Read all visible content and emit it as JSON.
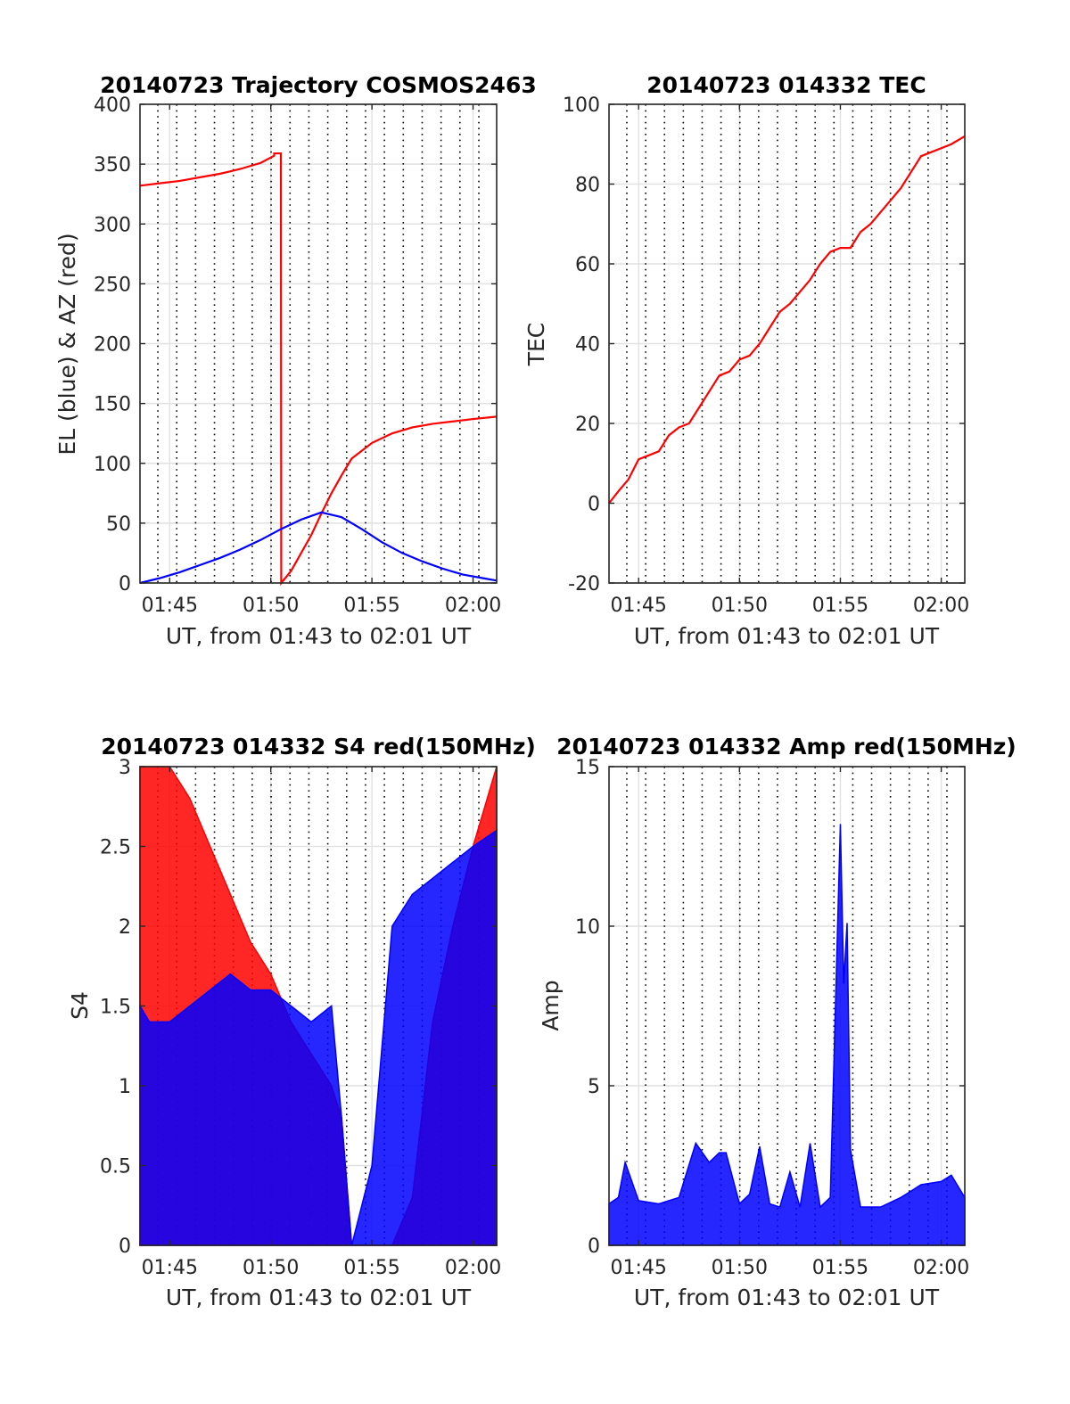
{
  "chart_data": [
    {
      "type": "line",
      "title": "20140723 Trajectory COSMOS2463",
      "xlabel": "UT, from 01:43 to 02:01 UT",
      "ylabel": "EL (blue) & AZ (red)",
      "xlim": [
        "01:43:32",
        "02:01:10"
      ],
      "ylim": [
        0,
        400
      ],
      "x_ticks": [
        "01:45",
        "01:50",
        "01:55",
        "02:00"
      ],
      "y_ticks": [
        "0",
        "50",
        "100",
        "150",
        "200",
        "250",
        "300",
        "350",
        "400"
      ],
      "grid": true,
      "series": [
        {
          "color": "#ff0000",
          "x": [
            "01:43:32",
            "01:44:30",
            "01:45:30",
            "01:46:30",
            "01:47:30",
            "01:48:30",
            "01:49:30",
            "01:50:10",
            "01:50:10",
            "01:50:30",
            "01:50:31",
            "01:51:00",
            "01:51:30",
            "01:52:00",
            "01:52:30",
            "01:53:00",
            "01:53:30",
            "01:54:00",
            "01:55:00",
            "01:56:00",
            "01:57:00",
            "01:58:00",
            "01:59:00",
            "02:00:00",
            "02:01:10"
          ],
          "values": [
            332,
            334,
            336,
            339,
            342,
            346,
            351,
            357,
            359,
            359,
            0,
            10,
            25,
            40,
            58,
            75,
            90,
            104,
            117,
            125,
            130,
            133,
            135,
            137,
            139
          ]
        },
        {
          "color": "#0000ff",
          "x": [
            "01:43:32",
            "01:44:30",
            "01:45:30",
            "01:46:30",
            "01:47:30",
            "01:48:30",
            "01:49:30",
            "01:50:30",
            "01:51:30",
            "01:52:30",
            "01:53:30",
            "01:54:30",
            "01:55:30",
            "01:56:30",
            "01:57:30",
            "01:58:30",
            "01:59:30",
            "02:00:30",
            "02:01:10"
          ],
          "values": [
            0,
            4,
            9,
            15,
            21,
            28,
            36,
            45,
            53,
            59,
            55,
            45,
            34,
            25,
            18,
            12,
            7,
            4,
            2
          ]
        }
      ]
    },
    {
      "type": "line",
      "title": "20140723 014332 TEC",
      "xlabel": "UT, from 01:43 to 02:01 UT",
      "ylabel": "TEC",
      "xlim": [
        "01:43:32",
        "02:01:10"
      ],
      "ylim": [
        -20,
        100
      ],
      "x_ticks": [
        "01:45",
        "01:50",
        "01:55",
        "02:00"
      ],
      "y_ticks": [
        "-20",
        "0",
        "20",
        "40",
        "60",
        "80",
        "100"
      ],
      "grid": true,
      "series": [
        {
          "color": "#ff0000",
          "x": [
            "01:43:32",
            "01:44:00",
            "01:44:30",
            "01:45:00",
            "01:45:30",
            "01:46:00",
            "01:46:30",
            "01:47:00",
            "01:47:30",
            "01:48:00",
            "01:48:30",
            "01:49:00",
            "01:49:30",
            "01:50:00",
            "01:50:30",
            "01:51:00",
            "01:51:30",
            "01:52:00",
            "01:52:30",
            "01:53:00",
            "01:53:30",
            "01:54:00",
            "01:54:30",
            "01:55:00",
            "01:55:30",
            "01:56:00",
            "01:56:30",
            "01:57:00",
            "01:57:30",
            "01:58:00",
            "01:58:30",
            "01:59:00",
            "01:59:30",
            "02:00:00",
            "02:00:30",
            "02:01:10"
          ],
          "values": [
            0,
            3,
            6,
            11,
            12,
            13,
            17,
            19,
            20,
            24,
            28,
            32,
            33,
            36,
            37,
            40,
            44,
            48,
            50,
            53,
            56,
            60,
            63,
            64,
            64,
            68,
            70,
            73,
            76,
            79,
            83,
            87,
            88,
            89,
            90,
            92
          ]
        }
      ]
    },
    {
      "type": "area",
      "title": "20140723 014332 S4 red(150MHz)",
      "xlabel": "UT, from 01:43 to 02:01 UT",
      "ylabel": "S4",
      "xlim": [
        "01:43:32",
        "02:01:10"
      ],
      "ylim": [
        0,
        3
      ],
      "x_ticks": [
        "01:45",
        "01:50",
        "01:55",
        "02:00"
      ],
      "y_ticks": [
        "0",
        "0.5",
        "1",
        "1.5",
        "2",
        "2.5",
        "3"
      ],
      "grid": true,
      "series": [
        {
          "color": "#ff0000",
          "x": [
            "01:43:32",
            "01:44:00",
            "01:45:00",
            "01:46:00",
            "01:47:00",
            "01:48:00",
            "01:49:00",
            "01:50:00",
            "01:51:00",
            "01:52:00",
            "01:53:00",
            "01:53:30",
            "01:54:00",
            "01:55:00",
            "01:56:00",
            "01:57:00",
            "01:58:00",
            "01:59:00",
            "02:00:00",
            "02:01:10"
          ],
          "values": [
            3,
            3,
            3,
            2.8,
            2.5,
            2.2,
            1.9,
            1.7,
            1.4,
            1.2,
            1.0,
            0.8,
            0,
            0,
            0,
            0.3,
            1.4,
            2.0,
            2.5,
            3
          ]
        },
        {
          "color": "#0000ff",
          "x": [
            "01:43:32",
            "01:44:00",
            "01:45:00",
            "01:46:00",
            "01:47:00",
            "01:48:00",
            "01:49:00",
            "01:50:00",
            "01:51:00",
            "01:52:00",
            "01:53:00",
            "01:53:30",
            "01:54:00",
            "01:55:00",
            "01:56:00",
            "01:57:00",
            "01:58:00",
            "01:59:00",
            "02:00:00",
            "02:01:10"
          ],
          "values": [
            1.5,
            1.4,
            1.4,
            1.5,
            1.6,
            1.7,
            1.6,
            1.6,
            1.5,
            1.4,
            1.5,
            0.8,
            0,
            0.5,
            2.0,
            2.2,
            2.3,
            2.4,
            2.5,
            2.6
          ]
        }
      ]
    },
    {
      "type": "area",
      "title": "20140723 014332 Amp red(150MHz)",
      "xlabel": "UT, from 01:43 to 02:01 UT",
      "ylabel": "Amp",
      "xlim": [
        "01:43:32",
        "02:01:10"
      ],
      "ylim": [
        0,
        15
      ],
      "x_ticks": [
        "01:45",
        "01:50",
        "01:55",
        "02:00"
      ],
      "y_ticks": [
        "0",
        "5",
        "10",
        "15"
      ],
      "grid": true,
      "series": [
        {
          "color": "#0000ff",
          "x": [
            "01:43:32",
            "01:44:00",
            "01:44:20",
            "01:45:00",
            "01:46:00",
            "01:47:00",
            "01:47:50",
            "01:48:30",
            "01:49:00",
            "01:49:20",
            "01:50:00",
            "01:50:30",
            "01:51:00",
            "01:51:30",
            "01:52:00",
            "01:52:30",
            "01:53:00",
            "01:53:30",
            "01:54:00",
            "01:54:30",
            "01:55:00",
            "01:55:10",
            "01:55:20",
            "01:55:30",
            "01:56:00",
            "01:57:00",
            "01:58:00",
            "01:59:00",
            "02:00:00",
            "02:00:30",
            "02:01:10"
          ],
          "values": [
            1.3,
            1.5,
            2.6,
            1.4,
            1.3,
            1.5,
            3.2,
            2.6,
            2.9,
            2.9,
            1.3,
            1.6,
            3.1,
            1.3,
            1.2,
            2.3,
            1.2,
            3.2,
            1.2,
            1.5,
            13.2,
            8.2,
            10.1,
            3.0,
            1.2,
            1.2,
            1.5,
            1.9,
            2.0,
            2.2,
            1.5
          ]
        }
      ]
    }
  ]
}
